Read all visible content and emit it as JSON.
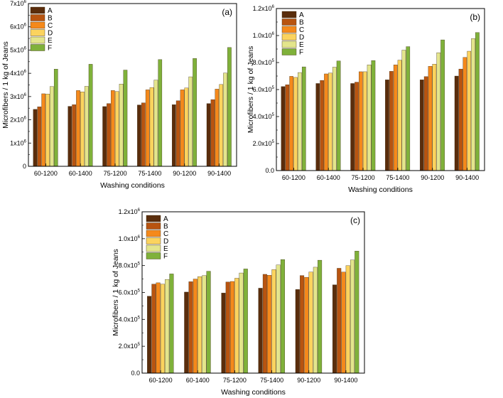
{
  "chart_data": [
    {
      "type": "bar",
      "panel_label": "(a)",
      "xlabel": "Washing conditions",
      "ylabel": "Microfibers / 1 kg of Jeans",
      "ylim": [
        0,
        7000000
      ],
      "yticks": [
        0,
        1000000,
        2000000,
        3000000,
        4000000,
        5000000,
        6000000,
        7000000
      ],
      "ytick_labels": [
        [
          "0",
          ""
        ],
        [
          "1x10",
          "6"
        ],
        [
          "2x10",
          "6"
        ],
        [
          "3x10",
          "6"
        ],
        [
          "4x10",
          "6"
        ],
        [
          "5x10",
          "6"
        ],
        [
          "6x10",
          "6"
        ],
        [
          "7x10",
          "6"
        ]
      ],
      "categories": [
        "60-1200",
        "60-1400",
        "75-1200",
        "75-1400",
        "90-1200",
        "90-1400"
      ],
      "legend_position": "top-left",
      "series": [
        {
          "name": "A",
          "color": "#5a2d0c",
          "values": [
            2450000,
            2580000,
            2570000,
            2640000,
            2650000,
            2700000
          ]
        },
        {
          "name": "B",
          "color": "#b85410",
          "values": [
            2560000,
            2650000,
            2700000,
            2730000,
            2820000,
            2870000
          ]
        },
        {
          "name": "C",
          "color": "#f5891b",
          "values": [
            3120000,
            3260000,
            3260000,
            3290000,
            3290000,
            3320000
          ]
        },
        {
          "name": "D",
          "color": "#fbd35e",
          "values": [
            3110000,
            3200000,
            3220000,
            3390000,
            3370000,
            3520000
          ]
        },
        {
          "name": "E",
          "color": "#e3e58c",
          "values": [
            3430000,
            3440000,
            3540000,
            3710000,
            3850000,
            4010000
          ]
        },
        {
          "name": "F",
          "color": "#7fb13a",
          "values": [
            4180000,
            4390000,
            4140000,
            4590000,
            4640000,
            5110000
          ]
        }
      ]
    },
    {
      "type": "bar",
      "panel_label": "(b)",
      "xlabel": "Washing conditions",
      "ylabel": "Microfibers / 1 kg of Jeans",
      "ylim": [
        0,
        1200000
      ],
      "yticks": [
        0,
        200000,
        400000,
        600000,
        800000,
        1000000,
        1200000
      ],
      "ytick_labels": [
        [
          "0.0",
          ""
        ],
        [
          "2.0x10",
          "5"
        ],
        [
          "4.0x10",
          "5"
        ],
        [
          "6.0x10",
          "5"
        ],
        [
          "8.0x10",
          "5"
        ],
        [
          "1.0x10",
          "6"
        ],
        [
          "1.2x10",
          "6"
        ]
      ],
      "categories": [
        "60-1200",
        "60-1400",
        "75-1200",
        "75-1400",
        "90-1200",
        "90-1400"
      ],
      "legend_position": "top-left",
      "series": [
        {
          "name": "A",
          "color": "#5a2d0c",
          "values": [
            622000,
            645000,
            645000,
            672000,
            672000,
            700000
          ]
        },
        {
          "name": "B",
          "color": "#b85410",
          "values": [
            636000,
            668000,
            655000,
            735000,
            696000,
            752000
          ]
        },
        {
          "name": "C",
          "color": "#f5891b",
          "values": [
            698000,
            716000,
            732000,
            783000,
            772000,
            838000
          ]
        },
        {
          "name": "D",
          "color": "#fbd35e",
          "values": [
            690000,
            722000,
            732000,
            818000,
            788000,
            884000
          ]
        },
        {
          "name": "E",
          "color": "#e3e58c",
          "values": [
            726000,
            766000,
            783000,
            892000,
            873000,
            978000
          ]
        },
        {
          "name": "F",
          "color": "#7fb13a",
          "values": [
            768000,
            812000,
            815000,
            918000,
            968000,
            1022000
          ]
        }
      ]
    },
    {
      "type": "bar",
      "panel_label": "(c)",
      "xlabel": "Washing conditions",
      "ylabel": "Microfibers / 1 kg of Jeans",
      "ylim": [
        0,
        1200000
      ],
      "yticks": [
        0,
        200000,
        400000,
        600000,
        800000,
        1000000,
        1200000
      ],
      "ytick_labels": [
        [
          "0.0",
          ""
        ],
        [
          "2.0x10",
          "5"
        ],
        [
          "4.0x10",
          "5"
        ],
        [
          "6.0x10",
          "5"
        ],
        [
          "8.0x10",
          "5"
        ],
        [
          "1.0x10",
          "6"
        ],
        [
          "1.2x10",
          "6"
        ]
      ],
      "categories": [
        "60-1200",
        "60-1400",
        "75-1200",
        "75-1400",
        "90-1200",
        "90-1400"
      ],
      "legend_position": "top-left",
      "series": [
        {
          "name": "A",
          "color": "#5a2d0c",
          "values": [
            572000,
            603000,
            596000,
            632000,
            622000,
            657000
          ]
        },
        {
          "name": "B",
          "color": "#b85410",
          "values": [
            662000,
            680000,
            678000,
            735000,
            726000,
            780000
          ]
        },
        {
          "name": "C",
          "color": "#f5891b",
          "values": [
            672000,
            700000,
            682000,
            728000,
            713000,
            752000
          ]
        },
        {
          "name": "D",
          "color": "#fbd35e",
          "values": [
            662000,
            718000,
            706000,
            770000,
            752000,
            800000
          ]
        },
        {
          "name": "E",
          "color": "#e3e58c",
          "values": [
            697000,
            726000,
            745000,
            805000,
            788000,
            842000
          ]
        },
        {
          "name": "F",
          "color": "#7fb13a",
          "values": [
            738000,
            758000,
            775000,
            845000,
            840000,
            908000
          ]
        }
      ]
    }
  ]
}
